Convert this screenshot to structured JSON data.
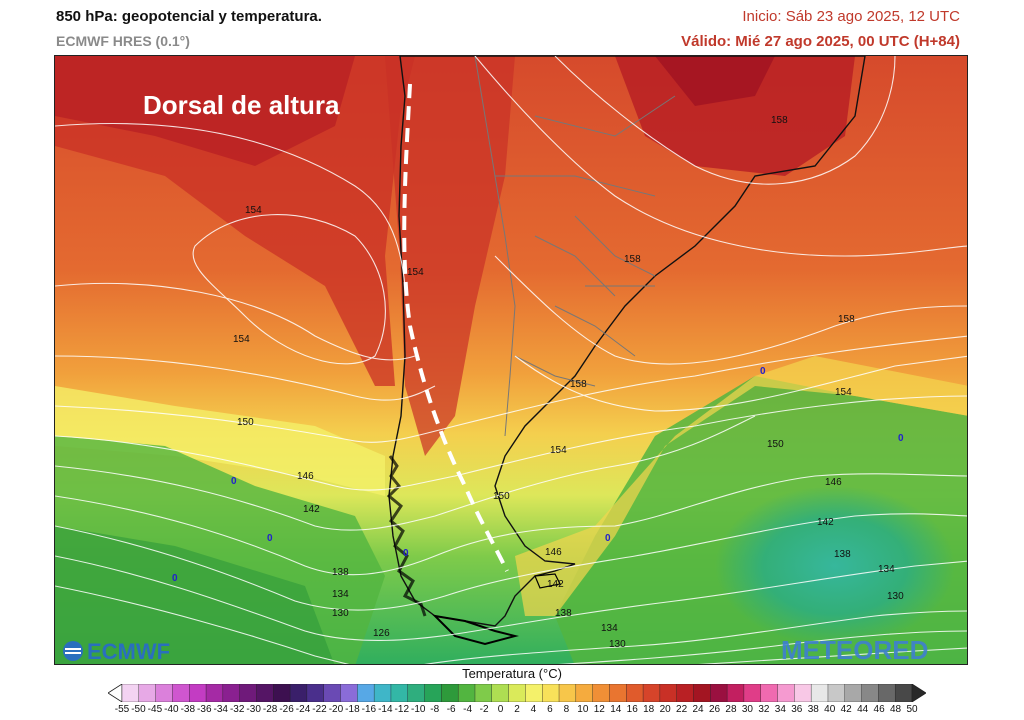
{
  "header": {
    "title": "850 hPa: geopotencial y temperatura.",
    "model": "ECMWF HRES (0.1°)",
    "init": "Inicio: Sáb 23 ago 2025, 12 UTC",
    "valid": "Válido: Mié 27 ago 2025, 00 UTC (H+84)"
  },
  "map": {
    "annotation": "Dorsal de altura",
    "contour_labels": [
      "154",
      "154",
      "154",
      "154",
      "158",
      "158",
      "158",
      "158",
      "154",
      "150",
      "150",
      "146",
      "142",
      "150",
      "154",
      "146",
      "142",
      "138",
      "134",
      "130",
      "146",
      "142",
      "138",
      "134",
      "130",
      "126",
      "138",
      "134",
      "130",
      "158",
      "154",
      "150"
    ],
    "zero_labels": [
      "0",
      "0",
      "0",
      "0",
      "0",
      "0",
      "0"
    ],
    "logos": {
      "left": "ECMWF",
      "right": "METEORED"
    }
  },
  "legend": {
    "title": "Temperatura (°C)",
    "ticks": [
      "-55",
      "-50",
      "-45",
      "-40",
      "-38",
      "-36",
      "-34",
      "-32",
      "-30",
      "-28",
      "-26",
      "-24",
      "-22",
      "-20",
      "-18",
      "-16",
      "-14",
      "-12",
      "-10",
      "-8",
      "-6",
      "-4",
      "-2",
      "0",
      "2",
      "4",
      "6",
      "8",
      "10",
      "12",
      "14",
      "16",
      "18",
      "20",
      "22",
      "24",
      "26",
      "28",
      "30",
      "32",
      "34",
      "36",
      "38",
      "40",
      "42",
      "44",
      "46",
      "48",
      "50"
    ],
    "colors": [
      "#ffffff",
      "#f3d3f2",
      "#e7a9e6",
      "#db80db",
      "#cf56cf",
      "#c33cc3",
      "#a52aa5",
      "#8a2090",
      "#6f1a7a",
      "#551565",
      "#3d1050",
      "#3a1f6a",
      "#4a2f8c",
      "#6a4ab4",
      "#8a6cd8",
      "#57a8e6",
      "#3fb6c8",
      "#33b7a6",
      "#2fae7e",
      "#27a459",
      "#2e9a3b",
      "#52b540",
      "#7fcb4a",
      "#aede52",
      "#daea5a",
      "#f4f16a",
      "#f8e15a",
      "#f7c64a",
      "#f5ab3e",
      "#f08f36",
      "#e97530",
      "#e05b2c",
      "#d6442a",
      "#c93026",
      "#b92024",
      "#a31522",
      "#9a1040",
      "#c21f60",
      "#e03d88",
      "#f06ab0",
      "#f59ad0",
      "#f8c8e6",
      "#e8e8e8",
      "#c8c8c8",
      "#a8a8a8",
      "#888888",
      "#686868",
      "#484848",
      "#282828"
    ]
  }
}
